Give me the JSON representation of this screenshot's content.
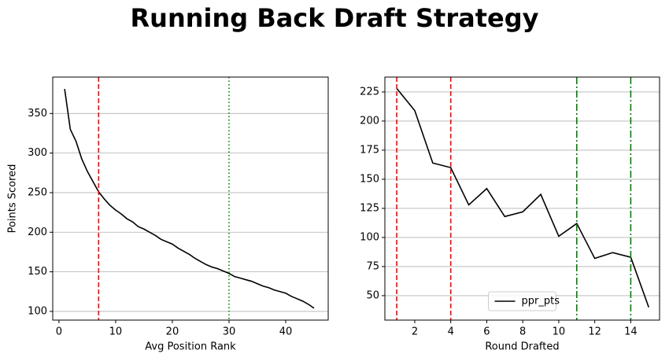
{
  "title": "Running Back Draft Strategy",
  "chart_data": [
    {
      "type": "line",
      "xlabel": "Avg Position Rank",
      "ylabel": "Points Scored",
      "x": [
        1,
        2,
        3,
        4,
        5,
        6,
        7,
        8,
        9,
        10,
        11,
        12,
        13,
        14,
        15,
        16,
        17,
        18,
        19,
        20,
        21,
        22,
        23,
        24,
        25,
        26,
        27,
        28,
        29,
        30,
        31,
        32,
        33,
        34,
        35,
        36,
        37,
        38,
        39,
        40,
        41,
        42,
        43,
        44,
        45
      ],
      "values": [
        381,
        330,
        315,
        293,
        277,
        264,
        251,
        242,
        234,
        228,
        223,
        217,
        213,
        207,
        204,
        200,
        196,
        191,
        188,
        185,
        180,
        176,
        172,
        167,
        163,
        159,
        156,
        154,
        151,
        148,
        144,
        142,
        140,
        138,
        135,
        132,
        130,
        127,
        125,
        123,
        119,
        116,
        113,
        109,
        104
      ],
      "color": "#000000",
      "xlim": [
        -1.1,
        47.5
      ],
      "ylim": [
        89,
        396
      ],
      "xticks": [
        0,
        10,
        20,
        30,
        40
      ],
      "yticks": [
        100,
        150,
        200,
        250,
        300,
        350
      ],
      "grid": "y",
      "vlines": [
        {
          "x": 7,
          "color": "#ff0000",
          "style": "dashed"
        },
        {
          "x": 30,
          "color": "#008000",
          "style": "dotted"
        }
      ]
    },
    {
      "type": "line",
      "xlabel": "Round Drafted",
      "x": [
        1,
        2,
        3,
        4,
        5,
        6,
        7,
        8,
        9,
        10,
        11,
        12,
        13,
        14,
        15
      ],
      "series": [
        {
          "name": "ppr_pts",
          "color": "#000000",
          "values": [
            228,
            209,
            164,
            160,
            128,
            142,
            118,
            122,
            137,
            101,
            112,
            82,
            87,
            83,
            40
          ]
        }
      ],
      "xlim": [
        0.34,
        15.6
      ],
      "ylim": [
        29,
        237.8
      ],
      "xticks": [
        2,
        4,
        6,
        8,
        10,
        12,
        14
      ],
      "yticks": [
        50,
        75,
        100,
        125,
        150,
        175,
        200,
        225
      ],
      "grid": "y",
      "legend": "lower center",
      "vlines": [
        {
          "x": 1,
          "color": "#ff0000",
          "style": "dashed"
        },
        {
          "x": 4,
          "color": "#ff0000",
          "style": "dashed"
        },
        {
          "x": 11,
          "color": "#008000",
          "style": "dashdot"
        },
        {
          "x": 14,
          "color": "#008000",
          "style": "dashdot"
        }
      ]
    }
  ]
}
